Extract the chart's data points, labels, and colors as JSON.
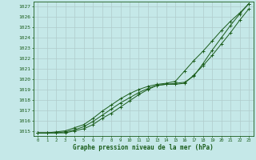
{
  "xlabel": "Graphe pression niveau de la mer (hPa)",
  "background_color": "#c5e8e8",
  "grid_color": "#b0cccc",
  "line_color": "#1a5c1a",
  "xlim": [
    -0.5,
    23.5
  ],
  "ylim": [
    1014.5,
    1027.5
  ],
  "yticks": [
    1015,
    1016,
    1017,
    1018,
    1019,
    1020,
    1021,
    1022,
    1023,
    1024,
    1025,
    1026,
    1027
  ],
  "xticks": [
    0,
    1,
    2,
    3,
    4,
    5,
    6,
    7,
    8,
    9,
    10,
    11,
    12,
    13,
    14,
    15,
    16,
    17,
    18,
    19,
    20,
    21,
    22,
    23
  ],
  "line1": [
    1014.8,
    1014.8,
    1014.8,
    1014.8,
    1015.0,
    1015.2,
    1015.6,
    1016.2,
    1016.7,
    1017.3,
    1017.9,
    1018.5,
    1019.0,
    1019.4,
    1019.5,
    1019.6,
    1019.7,
    1020.3,
    1021.5,
    1022.8,
    1024.0,
    1025.2,
    1026.3,
    1027.3
  ],
  "line2": [
    1014.8,
    1014.8,
    1014.8,
    1014.9,
    1015.1,
    1015.4,
    1015.9,
    1016.5,
    1017.1,
    1017.7,
    1018.2,
    1018.7,
    1019.1,
    1019.4,
    1019.5,
    1019.5,
    1019.6,
    1020.4,
    1021.3,
    1022.3,
    1023.4,
    1024.5,
    1025.7,
    1026.8
  ],
  "line3": [
    1014.8,
    1014.8,
    1014.9,
    1015.0,
    1015.3,
    1015.6,
    1016.2,
    1016.9,
    1017.5,
    1018.1,
    1018.6,
    1019.0,
    1019.3,
    1019.5,
    1019.6,
    1019.8,
    1020.8,
    1021.8,
    1022.7,
    1023.7,
    1024.7,
    1025.6,
    1026.4,
    1027.3
  ]
}
